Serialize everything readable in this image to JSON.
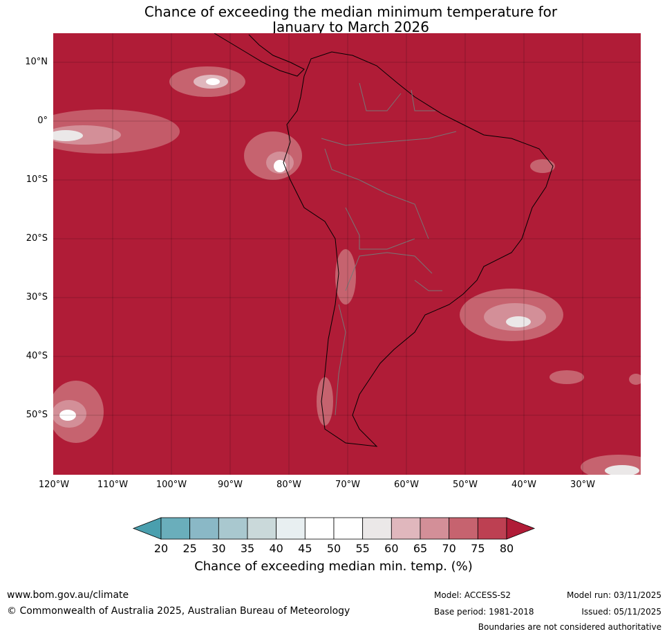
{
  "title": {
    "line1": "Chance of exceeding the median minimum temperature for",
    "line2": "January to March 2026"
  },
  "map": {
    "region": "South America",
    "ocean_fill_color": "#b01c37",
    "lat_labels": [
      "10°N",
      "0°",
      "10°S",
      "20°S",
      "30°S",
      "40°S",
      "50°S"
    ],
    "lon_labels": [
      "120°W",
      "110°W",
      "100°W",
      "90°W",
      "80°W",
      "70°W",
      "60°W",
      "50°W",
      "40°W",
      "30°W"
    ]
  },
  "colorbar": {
    "ticks": [
      "20",
      "25",
      "30",
      "35",
      "40",
      "45",
      "50",
      "55",
      "60",
      "65",
      "70",
      "75",
      "80"
    ],
    "colors": [
      "#6aaebb",
      "#8ab8c6",
      "#a9c8cf",
      "#cad9da",
      "#e8eff1",
      "#ffffff",
      "#ffffff",
      "#ebe8e8",
      "#e0b7bd",
      "#d38f98",
      "#c6636f",
      "#bd4052"
    ],
    "under_color": "#4a9fae",
    "over_color": "#b01c37",
    "label": "Chance of exceeding median min. temp. (%)"
  },
  "footer": {
    "website": "www.bom.gov.au/climate",
    "copyright": "© Commonwealth of Australia 2025, Australian Bureau of Meteorology",
    "model": "Model: ACCESS-S2",
    "base_period": "Base period: 1981-2018",
    "model_run": "Model run: 03/11/2025",
    "issued": "Issued: 05/11/2025",
    "disclaimer": "Boundaries are not considered authoritative"
  }
}
